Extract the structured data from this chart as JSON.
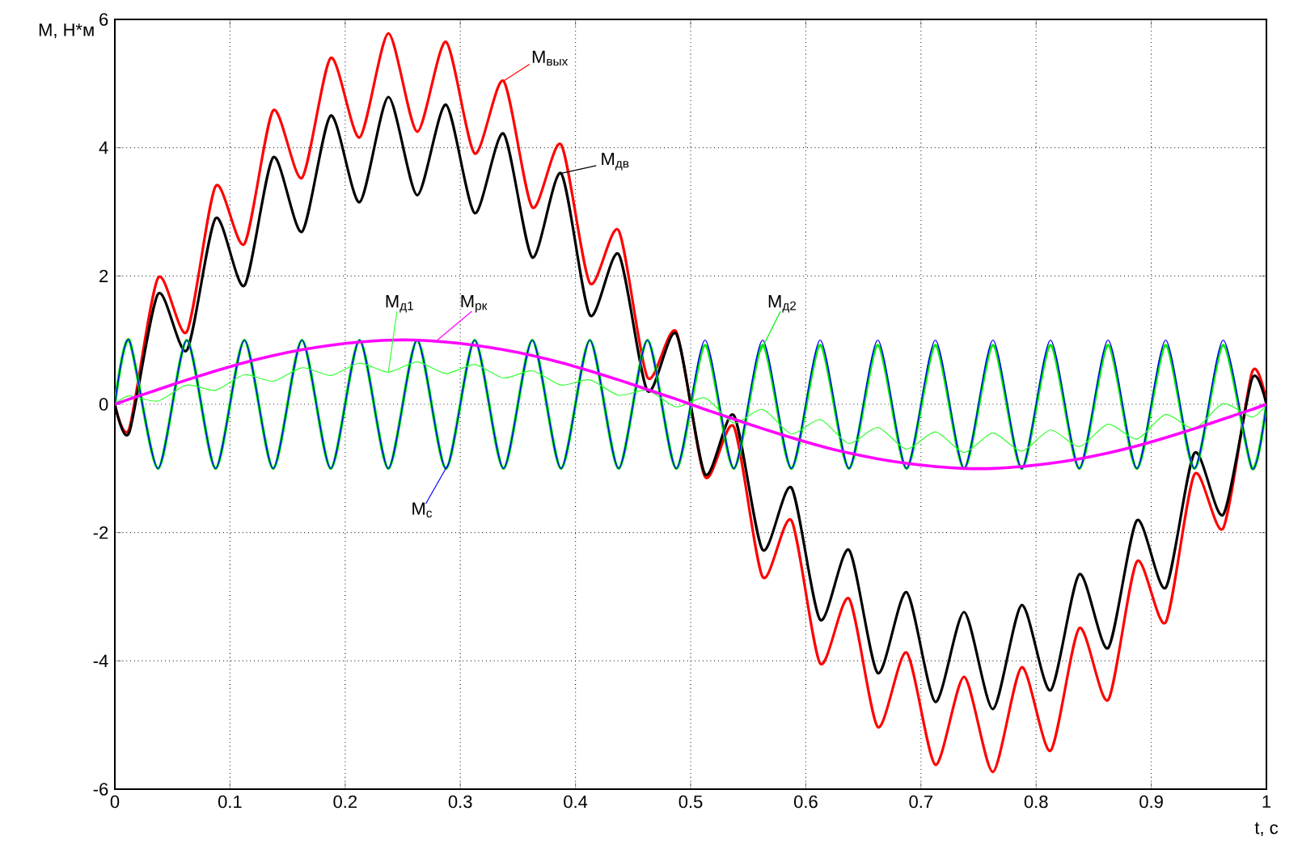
{
  "chart_data": {
    "type": "line",
    "xlabel": "t, c",
    "ylabel": "M, Н*м",
    "x": [
      0,
      0.0125,
      0.0375,
      0.0625,
      0.0875,
      0.1125,
      0.1375,
      0.1625,
      0.1875,
      0.2125,
      0.2375,
      0.2625,
      0.2875,
      0.3125,
      0.3375,
      0.3625,
      0.3875,
      0.4125,
      0.4375,
      0.4625,
      0.4875,
      0.5125,
      0.5375,
      0.5625,
      0.5875,
      0.6125,
      0.6375,
      0.6625,
      0.6875,
      0.7125,
      0.7375,
      0.7625,
      0.7875,
      0.8125,
      0.8375,
      0.8625,
      0.8875,
      0.9125,
      0.9375,
      0.9625,
      0.9875,
      1
    ],
    "series": [
      {
        "name": "M$_{вых}$",
        "color": "#ff0000",
        "values": [
          0,
          -0.38,
          1.97,
          1.13,
          3.4,
          2.5,
          4.58,
          3.53,
          5.4,
          4.16,
          5.78,
          4.25,
          5.65,
          3.91,
          5.04,
          3.07,
          4.05,
          1.89,
          2.71,
          0.42,
          1.13,
          -1.13,
          -0.35,
          -2.69,
          -1.81,
          -4.04,
          -3.03,
          -5.03,
          -3.87,
          -5.62,
          -4.25,
          -5.73,
          -4.1,
          -5.4,
          -3.49,
          -4.61,
          -2.45,
          -3.4,
          -1.09,
          -1.93,
          0.5,
          0.05
        ]
      },
      {
        "name": "M$_{дв}$",
        "color": "#000000",
        "values": [
          0,
          -0.44,
          1.72,
          0.84,
          2.9,
          1.85,
          3.85,
          2.69,
          4.5,
          3.15,
          4.79,
          3.26,
          4.67,
          2.98,
          4.22,
          2.29,
          3.6,
          1.39,
          2.34,
          0.21,
          1.1,
          -1.09,
          -0.17,
          -2.27,
          -1.3,
          -3.36,
          -2.27,
          -4.19,
          -2.93,
          -4.64,
          -3.24,
          -4.75,
          -3.13,
          -4.46,
          -2.65,
          -3.8,
          -1.81,
          -2.86,
          -0.76,
          -1.72,
          0.4,
          0
        ]
      },
      {
        "name": "M$_{д2}$",
        "color": "#00ee00",
        "values": [
          0,
          1,
          -1,
          1,
          -1,
          1,
          -1,
          1,
          -1,
          1,
          -1,
          1,
          -1,
          1,
          -1,
          1,
          -1,
          1,
          -1,
          1,
          -1,
          0.92,
          -1,
          0.92,
          -1,
          0.92,
          -1,
          0.92,
          -1,
          0.92,
          -1,
          0.92,
          -1,
          0.92,
          -1,
          0.92,
          -1,
          0.92,
          -1,
          0.92,
          -1,
          0
        ]
      },
      {
        "name": "M$_{с}$",
        "color": "#0000ff",
        "values": [
          0,
          1,
          -1,
          1,
          -1,
          1,
          -1,
          1,
          -1,
          1,
          -1,
          1,
          -1,
          1,
          -1,
          1,
          -1,
          1,
          -1,
          1,
          -1,
          1,
          -1,
          1,
          -1,
          1,
          -1,
          1,
          -1,
          1,
          -1,
          1,
          -1,
          1,
          -1,
          1,
          -1,
          1,
          -1,
          1,
          -1,
          0
        ]
      },
      {
        "name": "M$_{д1}$",
        "color": "#33ff33",
        "values": [
          0,
          0.13,
          0.05,
          0.3,
          0.22,
          0.46,
          0.36,
          0.57,
          0.45,
          0.64,
          0.5,
          0.66,
          0.48,
          0.62,
          0.41,
          0.52,
          0.3,
          0.38,
          0.14,
          0.22,
          -0.04,
          0.1,
          -0.29,
          -0.08,
          -0.46,
          -0.24,
          -0.61,
          -0.36,
          -0.7,
          -0.43,
          -0.75,
          -0.45,
          -0.73,
          -0.4,
          -0.66,
          -0.31,
          -0.54,
          -0.16,
          -0.38,
          0.01,
          -0.2,
          0
        ]
      },
      {
        "name": "M$_{рк}$",
        "color": "#ff00ff",
        "values": [
          0,
          0.08,
          0.23,
          0.38,
          0.52,
          0.65,
          0.76,
          0.85,
          0.92,
          0.97,
          1,
          1,
          0.97,
          0.92,
          0.85,
          0.76,
          0.65,
          0.52,
          0.38,
          0.23,
          0.08,
          -0.08,
          -0.23,
          -0.38,
          -0.52,
          -0.65,
          -0.76,
          -0.85,
          -0.92,
          -0.97,
          -1,
          -1,
          -0.97,
          -0.92,
          -0.85,
          -0.76,
          -0.65,
          -0.52,
          -0.38,
          -0.23,
          -0.08,
          0
        ]
      }
    ],
    "xlim": [
      0,
      1
    ],
    "ylim": [
      -6,
      6
    ],
    "xticks": [
      0,
      0.1,
      0.2,
      0.3,
      0.4,
      0.5,
      0.6,
      0.7,
      0.8,
      0.9,
      1
    ],
    "yticks": [
      -6,
      -4,
      -2,
      0,
      2,
      4,
      6
    ],
    "grid": true
  }
}
